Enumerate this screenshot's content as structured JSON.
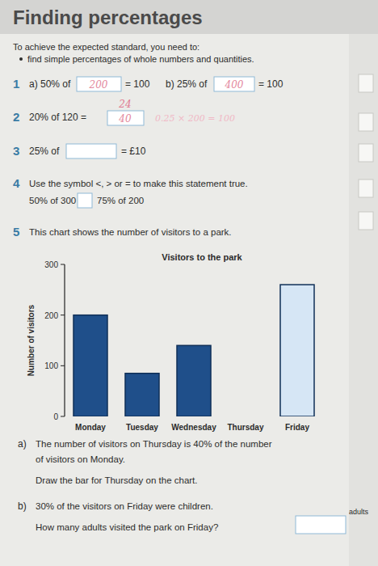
{
  "header": {
    "title": "Finding percentages",
    "intro": "To achieve the expected standard, you need to:",
    "objective": "find simple percentages of whole numbers and quantities."
  },
  "q1": {
    "number": "1",
    "a_label": "a) 50% of",
    "a_answer": "200",
    "a_result": "= 100",
    "b_label": "b) 25% of",
    "b_answer": "400",
    "b_result": "= 100"
  },
  "q2": {
    "number": "2",
    "text": "20% of 120 =",
    "answer": "40",
    "correction": "24",
    "working": "0.25 × 200 = 100"
  },
  "q3": {
    "number": "3",
    "left": "25% of",
    "right": "= £10"
  },
  "q4": {
    "number": "4",
    "instruction": "Use the symbol <, > or = to make this statement true.",
    "left": "50% of 300",
    "right": "75% of 200"
  },
  "q5": {
    "number": "5",
    "intro": "This chart shows the number of visitors to a park.",
    "a_label": "a)",
    "a_lines": [
      "The number of visitors on Thursday is 40% of the number",
      "of visitors on Monday.",
      "Draw the bar for Thursday on the chart."
    ],
    "b_label": "b)",
    "b_lines": [
      "30% of the visitors on Friday were children.",
      "How many adults visited the park on Friday?"
    ],
    "b_unit": "adults"
  },
  "chart_data": {
    "type": "bar",
    "title": "Visitors to the park",
    "y_label": "Number of visitors",
    "categories": [
      "Monday",
      "Tuesday",
      "Wednesday",
      "Thursday",
      "Friday"
    ],
    "values": [
      200,
      85,
      140,
      null,
      260
    ],
    "colors": [
      "#1f4f8a",
      "#1f4f8a",
      "#1f4f8a",
      "#1f4f8a",
      "#d6e6f5"
    ],
    "ylim": [
      0,
      300
    ],
    "yticks": [
      0,
      100,
      200,
      300
    ],
    "grid": false
  }
}
